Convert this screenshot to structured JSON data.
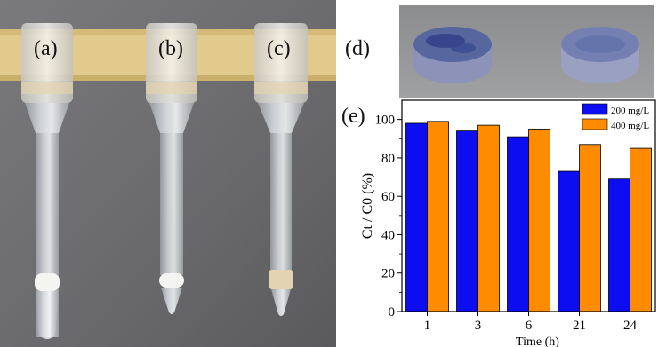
{
  "panel_labels": {
    "a": "(a)",
    "b": "(b)",
    "c": "(c)",
    "d": "(d)",
    "e": "(e)"
  },
  "colors": {
    "series_200": "#0d0df2",
    "series_400": "#ff8c00",
    "wall": "#6a6a6c",
    "tape": "#e2c98c"
  },
  "chart_data": {
    "type": "bar",
    "categories": [
      "1",
      "3",
      "6",
      "21",
      "24"
    ],
    "xlabel": "Time (h)",
    "ylabel": "Ct / C0 (%)",
    "ylim": [
      0,
      110
    ],
    "yticks": [
      "0",
      "20",
      "40",
      "60",
      "80",
      "100"
    ],
    "legend": "top-right",
    "series": [
      {
        "name": "200 mg/L",
        "values": [
          98,
          94,
          91,
          73,
          69
        ]
      },
      {
        "name": "400 mg/L",
        "values": [
          99,
          97,
          95,
          87,
          85
        ]
      }
    ]
  }
}
